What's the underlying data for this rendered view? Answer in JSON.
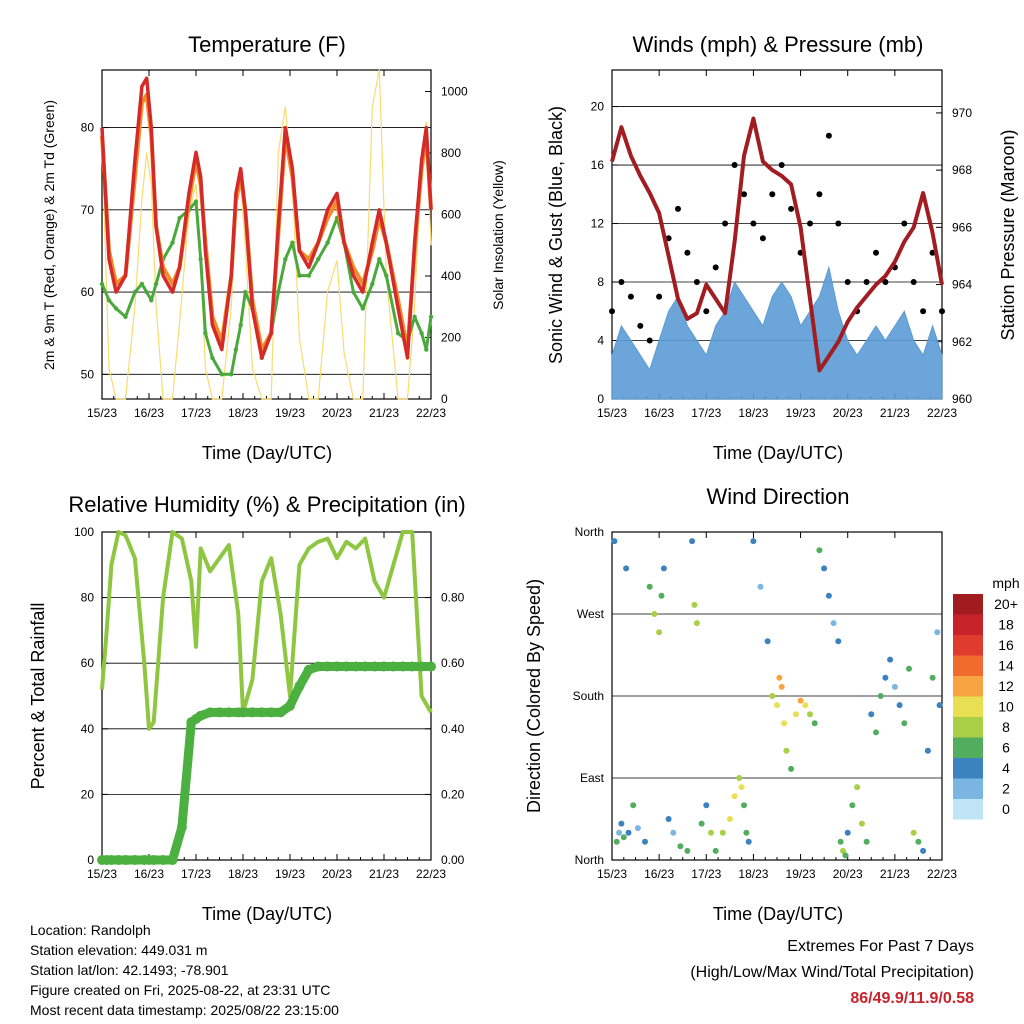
{
  "panels": {
    "temperature": {
      "title": "Temperature (F)",
      "xlabel": "Time (Day/UTC)",
      "ylabel_left": "2m & 9m T (Red, Orange) & 2m Td (Green)",
      "ylabel_right": "Solar Insolation (Yellow)"
    },
    "winds": {
      "title": "Winds (mph) & Pressure (mb)",
      "xlabel": "Time (Day/UTC)",
      "ylabel_left": "Sonic Wind & Gust (Blue, Black)",
      "ylabel_right": "Station Pressure (Maroon)"
    },
    "humidity": {
      "title": "Relative Humidity (%) & Precipitation (in)",
      "xlabel": "Time (Day/UTC)",
      "ylabel_left": "Percent & Total Rainfall"
    },
    "direction": {
      "title": "Wind Direction",
      "xlabel": "Time (Day/UTC)",
      "ylabel_left": "Direction (Colored By Speed)"
    }
  },
  "station_info": {
    "location": "Location: Randolph",
    "elevation": "Station elevation: 449.031 m",
    "latlon": "Station lat/lon: 42.1493; -78.901",
    "created": "Figure created on Fri, 2025-08-22, at 23:31 UTC",
    "recent": "Most recent data timestamp: 2025/08/22 23:15:00"
  },
  "extremes": {
    "title": "Extremes For Past 7 Days",
    "subtitle": "(High/Low/Max Wind/Total Precipitation)",
    "values": "86/49.9/11.9/0.58"
  },
  "legend": {
    "unit": "mph",
    "labels": [
      "20+",
      "18",
      "16",
      "14",
      "12",
      "10",
      "8",
      "6",
      "4",
      "2",
      "0"
    ],
    "colors": [
      "#a01c1e",
      "#c8232b",
      "#df3b2f",
      "#f16a2e",
      "#f8a443",
      "#e9df52",
      "#a8cf45",
      "#52ae5e",
      "#3b82bf",
      "#7bb6e3",
      "#bfe4f5"
    ]
  },
  "colors": {
    "temp_2m": "#d42a2a",
    "temp_9m": "#f28c28",
    "dewpoint": "#4aa83c",
    "insolation": "#f7dc6f",
    "wind": "#5b9bd5",
    "gust": "#000000",
    "pressure": "#a11d21",
    "rh": "#8ec641",
    "precip": "#4cb040"
  },
  "chart_data": [
    {
      "type": "line",
      "name": "temperature",
      "title": "Temperature (F)",
      "xlabel": "Time (Day/UTC)",
      "ylabel": "2m & 9m T (Red, Orange) & 2m Td (Green)",
      "y2label": "Solar Insolation (Yellow)",
      "x_ticks": [
        "15/23",
        "16/23",
        "17/23",
        "18/23",
        "19/23",
        "20/23",
        "21/23",
        "22/23"
      ],
      "xlim": [
        0,
        7
      ],
      "ylim": [
        47,
        87
      ],
      "y_ticks": [
        50,
        60,
        70,
        80
      ],
      "y2lim": [
        0,
        1070
      ],
      "y2_ticks": [
        0,
        200,
        400,
        600,
        800,
        1000
      ],
      "x_days": [
        0,
        0.15,
        0.3,
        0.5,
        0.7,
        0.85,
        0.95,
        1.05,
        1.15,
        1.3,
        1.5,
        1.65,
        1.85,
        2.0,
        2.1,
        2.2,
        2.35,
        2.55,
        2.75,
        2.85,
        2.95,
        3.05,
        3.2,
        3.4,
        3.6,
        3.75,
        3.9,
        4.05,
        4.2,
        4.4,
        4.6,
        4.8,
        5.0,
        5.15,
        5.35,
        5.55,
        5.75,
        5.9,
        6.05,
        6.3,
        6.5,
        6.65,
        6.8,
        6.9,
        7.0
      ],
      "series": [
        {
          "name": "2m T",
          "values": [
            80,
            64,
            60,
            62,
            76,
            85,
            86,
            80,
            68,
            62,
            60,
            63,
            72,
            77,
            74,
            65,
            56,
            53,
            62,
            72,
            75,
            70,
            58,
            52,
            55,
            68,
            80,
            75,
            65,
            63,
            66,
            70,
            72,
            66,
            62,
            60,
            66,
            70,
            66,
            58,
            52,
            66,
            76,
            80,
            70
          ]
        },
        {
          "name": "9m T",
          "values": [
            79,
            65,
            61,
            62,
            74,
            83,
            84,
            79,
            68,
            63,
            61,
            63,
            71,
            76,
            73,
            66,
            57,
            54,
            62,
            71,
            74,
            70,
            59,
            53,
            55,
            67,
            79,
            74,
            65,
            64,
            66,
            69,
            71,
            66,
            63,
            61,
            65,
            69,
            66,
            59,
            53,
            65,
            75,
            79,
            70
          ]
        },
        {
          "name": "2m Td",
          "values": [
            61,
            59,
            58,
            57,
            60,
            61,
            60,
            59,
            61,
            64,
            66,
            69,
            70,
            71,
            64,
            55,
            52,
            50,
            50,
            53,
            56,
            60,
            58,
            52,
            55,
            60,
            64,
            66,
            62,
            62,
            64,
            66,
            69,
            66,
            60,
            58,
            61,
            64,
            62,
            55,
            54,
            57,
            55,
            53,
            57
          ]
        },
        {
          "name": "Solar Insolation",
          "axis": "y2",
          "values": [
            850,
            100,
            0,
            0,
            300,
            650,
            800,
            700,
            300,
            0,
            0,
            250,
            600,
            700,
            450,
            100,
            0,
            0,
            300,
            650,
            700,
            500,
            100,
            0,
            0,
            800,
            950,
            700,
            200,
            0,
            0,
            350,
            450,
            150,
            0,
            0,
            950,
            1070,
            400,
            0,
            0,
            300,
            800,
            900,
            500
          ]
        }
      ]
    },
    {
      "type": "line",
      "name": "winds",
      "title": "Winds (mph) & Pressure (mb)",
      "xlabel": "Time (Day/UTC)",
      "ylabel": "Sonic Wind & Gust (Blue, Black)",
      "y2label": "Station Pressure (Maroon)",
      "x_ticks": [
        "15/23",
        "16/23",
        "17/23",
        "18/23",
        "19/23",
        "20/23",
        "21/23",
        "22/23"
      ],
      "xlim": [
        0,
        7
      ],
      "ylim": [
        0,
        22.5
      ],
      "y_ticks": [
        0,
        4,
        8,
        12,
        16,
        20
      ],
      "y2lim": [
        960,
        971.5
      ],
      "y2_ticks": [
        960,
        962,
        964,
        966,
        968,
        970
      ],
      "x_days": [
        0,
        0.2,
        0.4,
        0.6,
        0.8,
        1.0,
        1.2,
        1.4,
        1.6,
        1.8,
        2.0,
        2.2,
        2.4,
        2.6,
        2.8,
        3.0,
        3.2,
        3.4,
        3.6,
        3.8,
        4.0,
        4.2,
        4.4,
        4.6,
        4.8,
        5.0,
        5.2,
        5.4,
        5.6,
        5.8,
        6.0,
        6.2,
        6.4,
        6.6,
        6.8,
        7.0
      ],
      "series": [
        {
          "name": "Sonic Wind",
          "values": [
            3,
            5,
            4,
            3,
            2,
            4,
            6,
            7,
            5,
            4,
            3,
            5,
            6,
            8,
            7,
            6,
            5,
            7,
            8,
            7,
            5,
            6,
            7,
            9,
            6,
            4,
            3,
            4,
            5,
            4,
            5,
            6,
            4,
            3,
            5,
            3
          ]
        },
        {
          "name": "Gust",
          "values": [
            6,
            8,
            7,
            5,
            4,
            7,
            11,
            13,
            10,
            8,
            6,
            9,
            12,
            16,
            14,
            12,
            11,
            14,
            16,
            13,
            10,
            12,
            14,
            18,
            12,
            8,
            6,
            8,
            10,
            8,
            9,
            12,
            8,
            6,
            10,
            6
          ]
        },
        {
          "name": "Station Pressure",
          "axis": "y2",
          "values": [
            968.3,
            969.5,
            968.5,
            967.8,
            967.2,
            966.5,
            965.0,
            963.5,
            962.8,
            963.0,
            964.0,
            963.5,
            963.0,
            965.5,
            968.5,
            969.8,
            968.3,
            968.0,
            967.8,
            967.5,
            966.0,
            963.5,
            961.0,
            961.5,
            962.0,
            962.7,
            963.2,
            963.6,
            964.0,
            964.3,
            964.8,
            965.5,
            966.0,
            967.2,
            965.8,
            964.0
          ]
        }
      ]
    },
    {
      "type": "line",
      "name": "humidity",
      "title": "Relative Humidity (%) & Precipitation (in)",
      "xlabel": "Time (Day/UTC)",
      "ylabel": "Percent & Total Rainfall",
      "x_ticks": [
        "15/23",
        "16/23",
        "17/23",
        "18/23",
        "19/23",
        "20/23",
        "21/23",
        "22/23"
      ],
      "xlim": [
        0,
        7
      ],
      "ylim": [
        0,
        100
      ],
      "y_ticks": [
        0,
        20,
        40,
        60,
        80,
        100
      ],
      "y2lim": [
        0,
        1.0
      ],
      "y2_ticks": [
        0.0,
        0.2,
        0.4,
        0.6,
        0.8
      ],
      "x_days": [
        0,
        0.1,
        0.2,
        0.35,
        0.5,
        0.7,
        0.9,
        1.0,
        1.1,
        1.3,
        1.5,
        1.7,
        1.9,
        2.0,
        2.1,
        2.3,
        2.5,
        2.7,
        2.9,
        3.0,
        3.2,
        3.4,
        3.6,
        3.8,
        4.0,
        4.2,
        4.4,
        4.6,
        4.8,
        5.0,
        5.2,
        5.4,
        5.6,
        5.8,
        6.0,
        6.2,
        6.4,
        6.6,
        6.8,
        7.0
      ],
      "series": [
        {
          "name": "Relative Humidity",
          "values": [
            52,
            70,
            90,
            100,
            99,
            92,
            60,
            40,
            42,
            80,
            100,
            98,
            85,
            65,
            95,
            88,
            92,
            96,
            75,
            45,
            55,
            85,
            92,
            75,
            50,
            90,
            95,
            97,
            98,
            92,
            97,
            95,
            98,
            85,
            80,
            90,
            100,
            100,
            50,
            45
          ]
        },
        {
          "name": "Total Rainfall",
          "axis": "y2",
          "values": [
            0,
            0,
            0,
            0,
            0,
            0,
            0,
            0,
            0,
            0,
            0,
            0.1,
            0.42,
            0.43,
            0.44,
            0.45,
            0.45,
            0.45,
            0.45,
            0.45,
            0.45,
            0.45,
            0.45,
            0.45,
            0.47,
            0.53,
            0.58,
            0.59,
            0.59,
            0.59,
            0.59,
            0.59,
            0.59,
            0.59,
            0.59,
            0.59,
            0.59,
            0.59,
            0.59,
            0.59
          ]
        }
      ]
    },
    {
      "type": "scatter",
      "name": "direction",
      "title": "Wind Direction",
      "xlabel": "Time (Day/UTC)",
      "ylabel": "Direction (Colored By Speed)",
      "x_ticks": [
        "15/23",
        "16/23",
        "17/23",
        "18/23",
        "19/23",
        "20/23",
        "21/23",
        "22/23"
      ],
      "xlim": [
        0,
        7
      ],
      "y_ticks": [
        "North",
        "East",
        "South",
        "West",
        "North"
      ],
      "ylim": [
        0,
        360
      ],
      "x": [
        0.05,
        0.1,
        0.15,
        0.2,
        0.25,
        0.3,
        0.35,
        0.45,
        0.55,
        0.7,
        0.8,
        0.9,
        1.0,
        1.05,
        1.1,
        1.2,
        1.3,
        1.45,
        1.6,
        1.7,
        1.75,
        1.8,
        1.9,
        2.0,
        2.1,
        2.2,
        2.35,
        2.5,
        2.6,
        2.7,
        2.75,
        2.8,
        2.85,
        2.9,
        3.0,
        3.15,
        3.3,
        3.4,
        3.5,
        3.55,
        3.6,
        3.65,
        3.7,
        3.8,
        3.9,
        4.0,
        4.1,
        4.2,
        4.3,
        4.4,
        4.5,
        4.6,
        4.7,
        4.8,
        4.85,
        4.9,
        4.95,
        5.0,
        5.1,
        5.2,
        5.3,
        5.4,
        5.5,
        5.6,
        5.7,
        5.8,
        5.9,
        6.0,
        6.1,
        6.2,
        6.3,
        6.4,
        6.5,
        6.6,
        6.7,
        6.8,
        6.9,
        6.95
      ],
      "y": [
        350,
        20,
        30,
        40,
        25,
        320,
        30,
        60,
        35,
        20,
        300,
        270,
        250,
        290,
        320,
        45,
        30,
        15,
        10,
        350,
        280,
        260,
        40,
        60,
        30,
        10,
        30,
        45,
        70,
        90,
        80,
        60,
        30,
        20,
        350,
        300,
        240,
        180,
        170,
        200,
        190,
        150,
        120,
        100,
        160,
        175,
        170,
        160,
        150,
        340,
        320,
        290,
        260,
        240,
        20,
        10,
        5,
        30,
        60,
        80,
        40,
        20,
        160,
        140,
        180,
        200,
        220,
        190,
        170,
        150,
        210,
        30,
        20,
        10,
        120,
        200,
        250,
        170
      ],
      "speed": [
        3,
        5,
        2,
        4,
        6,
        3,
        4,
        5,
        2,
        3,
        6,
        8,
        7,
        5,
        3,
        4,
        2,
        5,
        6,
        4,
        7,
        8,
        5,
        3,
        8,
        6,
        7,
        9,
        10,
        8,
        9,
        6,
        5,
        4,
        3,
        2,
        4,
        7,
        9,
        11,
        12,
        10,
        8,
        6,
        9,
        11,
        10,
        8,
        6,
        5,
        4,
        3,
        2,
        4,
        6,
        7,
        5,
        3,
        6,
        7,
        8,
        5,
        4,
        6,
        5,
        4,
        3,
        2,
        4,
        5,
        6,
        7,
        6,
        4,
        3,
        5,
        2,
        4
      ]
    }
  ]
}
